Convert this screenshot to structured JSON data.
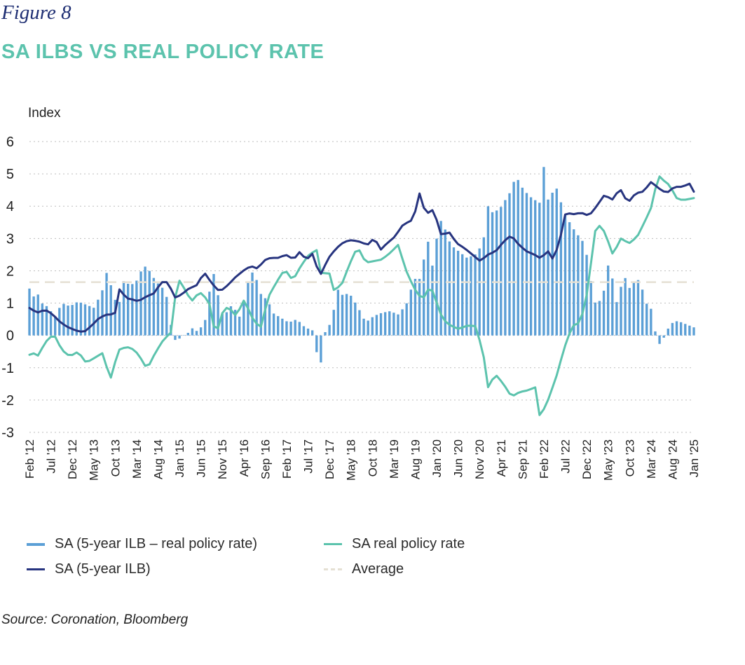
{
  "header": {
    "figure_label": "Figure 8",
    "title": "SA ILBS VS REAL POLICY RATE"
  },
  "source_note": "Source: Coronation, Bloomberg",
  "colors": {
    "spread_bars": "#5b9fd6",
    "ilb_line": "#27347f",
    "policy_line": "#5cc3ad",
    "average_line": "#e5e0d4",
    "axis_text": "#1f1f1f",
    "grid": "#bdbdbd"
  },
  "legend": {
    "spread": "SA (5-year ILB – real policy rate)",
    "policy": "SA real policy rate",
    "ilb": "SA (5-year ILB)",
    "average": "Average"
  },
  "chart_data": {
    "type": "bar+line",
    "title": "SA ILBS VS REAL POLICY RATE",
    "ylabel": "Index",
    "xlabel": "",
    "ylim": [
      -3,
      6
    ],
    "yticks": [
      -3,
      -2,
      -1,
      0,
      1,
      2,
      3,
      4,
      5,
      6
    ],
    "x_tick_labels": [
      "Feb '12",
      "Jul '12",
      "Dec '12",
      "May '13",
      "Oct '13",
      "Mar '14",
      "Aug '14",
      "Jan '15",
      "Jun '15",
      "Nov '15",
      "Apr '16",
      "Sep '16",
      "Feb '17",
      "Jul '17",
      "Dec '17",
      "May '18",
      "Oct '18",
      "Mar '19",
      "Aug '19",
      "Jan '20",
      "Jun '20",
      "Nov '20",
      "Apr '21",
      "Sep '21",
      "Feb '22",
      "Jul '22",
      "Dec '22",
      "May '23",
      "Oct '23",
      "Mar '24",
      "Aug '24",
      "Jan '25"
    ],
    "x_start": "Feb 2012",
    "x_end": "Jan 2025",
    "frequency": "monthly",
    "average": 1.65,
    "series": [
      {
        "name": "SA (5-year ILB)",
        "kind": "line",
        "anchors": [
          [
            0,
            0.85
          ],
          [
            2,
            0.7
          ],
          [
            4,
            0.8
          ],
          [
            6,
            0.65
          ],
          [
            8,
            0.4
          ],
          [
            10,
            0.25
          ],
          [
            12,
            0.15
          ],
          [
            14,
            0.1
          ],
          [
            16,
            0.3
          ],
          [
            18,
            0.55
          ],
          [
            20,
            0.65
          ],
          [
            22,
            0.65
          ],
          [
            23,
            1.45
          ],
          [
            25,
            1.15
          ],
          [
            27,
            1.1
          ],
          [
            28,
            1.05
          ],
          [
            30,
            1.2
          ],
          [
            32,
            1.3
          ],
          [
            34,
            1.65
          ],
          [
            36,
            1.65
          ],
          [
            37,
            1.15
          ],
          [
            39,
            1.25
          ],
          [
            41,
            1.45
          ],
          [
            43,
            1.55
          ],
          [
            45,
            1.95
          ],
          [
            47,
            1.6
          ],
          [
            49,
            1.35
          ],
          [
            51,
            1.55
          ],
          [
            53,
            1.8
          ],
          [
            55,
            2.0
          ],
          [
            57,
            2.15
          ],
          [
            59,
            2.05
          ],
          [
            60,
            2.3
          ],
          [
            62,
            2.4
          ],
          [
            64,
            2.4
          ],
          [
            66,
            2.5
          ],
          [
            68,
            2.35
          ],
          [
            70,
            2.65
          ],
          [
            71,
            2.3
          ],
          [
            73,
            2.55
          ],
          [
            74,
            2.1
          ],
          [
            75,
            1.9
          ],
          [
            77,
            2.4
          ],
          [
            79,
            2.7
          ],
          [
            81,
            2.9
          ],
          [
            83,
            2.95
          ],
          [
            85,
            2.9
          ],
          [
            87,
            2.8
          ],
          [
            89,
            3.05
          ],
          [
            90,
            2.6
          ],
          [
            92,
            2.85
          ],
          [
            94,
            3.05
          ],
          [
            96,
            3.4
          ],
          [
            98,
            3.55
          ],
          [
            99,
            3.55
          ],
          [
            100,
            4.55
          ],
          [
            102,
            3.75
          ],
          [
            104,
            3.9
          ],
          [
            106,
            3.1
          ],
          [
            108,
            3.2
          ],
          [
            110,
            2.85
          ],
          [
            112,
            2.7
          ],
          [
            114,
            2.5
          ],
          [
            116,
            2.3
          ],
          [
            118,
            2.5
          ],
          [
            120,
            2.6
          ],
          [
            122,
            2.9
          ],
          [
            124,
            3.1
          ],
          [
            126,
            2.8
          ],
          [
            128,
            2.6
          ],
          [
            130,
            2.5
          ],
          [
            132,
            2.35
          ],
          [
            133,
            2.7
          ],
          [
            135,
            2.3
          ],
          [
            136,
            2.8
          ],
          [
            137,
            3.2
          ],
          [
            138,
            3.8
          ],
          [
            140,
            3.75
          ],
          [
            142,
            3.8
          ],
          [
            144,
            3.7
          ],
          [
            146,
            4.0
          ],
          [
            148,
            4.35
          ],
          [
            150,
            4.2
          ],
          [
            152,
            4.55
          ],
          [
            154,
            4.1
          ],
          [
            156,
            4.4
          ],
          [
            158,
            4.45
          ],
          [
            160,
            4.75
          ],
          [
            162,
            4.55
          ],
          [
            164,
            4.4
          ],
          [
            166,
            4.6
          ],
          [
            168,
            4.6
          ],
          [
            170,
            4.7
          ],
          [
            171,
            4.45
          ]
        ]
      },
      {
        "name": "SA real policy rate",
        "kind": "line",
        "anchors": [
          [
            0,
            -0.6
          ],
          [
            1,
            -0.55
          ],
          [
            2,
            -0.65
          ],
          [
            4,
            -0.2
          ],
          [
            6,
            0.05
          ],
          [
            8,
            -0.45
          ],
          [
            10,
            -0.65
          ],
          [
            12,
            -0.5
          ],
          [
            14,
            -0.85
          ],
          [
            16,
            -0.7
          ],
          [
            18,
            -0.55
          ],
          [
            20,
            -1.35
          ],
          [
            22,
            -0.45
          ],
          [
            24,
            -0.35
          ],
          [
            26,
            -0.45
          ],
          [
            28,
            -0.8
          ],
          [
            29,
            -1.05
          ],
          [
            31,
            -0.55
          ],
          [
            33,
            -0.15
          ],
          [
            35,
            0.1
          ],
          [
            36,
            1.2
          ],
          [
            37,
            1.7
          ],
          [
            38,
            1.5
          ],
          [
            40,
            1.05
          ],
          [
            42,
            1.35
          ],
          [
            44,
            1.1
          ],
          [
            45,
            0.8
          ],
          [
            46,
            -0.25
          ],
          [
            47,
            0.6
          ],
          [
            49,
            0.9
          ],
          [
            51,
            0.6
          ],
          [
            53,
            1.1
          ],
          [
            55,
            0.55
          ],
          [
            57,
            0.2
          ],
          [
            59,
            1.2
          ],
          [
            61,
            1.65
          ],
          [
            63,
            2.05
          ],
          [
            65,
            1.7
          ],
          [
            67,
            2.15
          ],
          [
            69,
            2.5
          ],
          [
            71,
            2.65
          ],
          [
            72,
            1.9
          ],
          [
            74,
            1.95
          ],
          [
            75,
            1.4
          ],
          [
            77,
            1.55
          ],
          [
            79,
            2.2
          ],
          [
            81,
            2.75
          ],
          [
            83,
            2.25
          ],
          [
            85,
            2.3
          ],
          [
            87,
            2.35
          ],
          [
            89,
            2.55
          ],
          [
            91,
            2.8
          ],
          [
            93,
            2.0
          ],
          [
            95,
            1.45
          ],
          [
            97,
            1.1
          ],
          [
            99,
            1.55
          ],
          [
            100,
            1.2
          ],
          [
            102,
            0.5
          ],
          [
            104,
            0.3
          ],
          [
            106,
            0.2
          ],
          [
            108,
            0.3
          ],
          [
            110,
            0.3
          ],
          [
            112,
            -0.5
          ],
          [
            113,
            -1.65
          ],
          [
            115,
            -1.2
          ],
          [
            117,
            -1.5
          ],
          [
            119,
            -1.9
          ],
          [
            121,
            -1.75
          ],
          [
            123,
            -1.7
          ],
          [
            125,
            -1.6
          ],
          [
            126,
            -2.55
          ],
          [
            128,
            -2.0
          ],
          [
            130,
            -1.3
          ],
          [
            132,
            -0.4
          ],
          [
            134,
            0.3
          ],
          [
            136,
            0.4
          ],
          [
            138,
            1.5
          ],
          [
            139,
            2.7
          ],
          [
            140,
            3.5
          ],
          [
            142,
            3.2
          ],
          [
            144,
            2.5
          ],
          [
            146,
            3.0
          ],
          [
            148,
            2.85
          ],
          [
            150,
            3.05
          ],
          [
            152,
            3.55
          ],
          [
            154,
            4.1
          ],
          [
            155,
            5.0
          ],
          [
            156,
            4.85
          ],
          [
            158,
            4.65
          ],
          [
            160,
            4.2
          ],
          [
            162,
            4.2
          ],
          [
            164,
            4.25
          ]
        ]
      },
      {
        "name": "SA (5-year ILB – real policy rate)",
        "kind": "bar",
        "anchors": [
          [
            0,
            1.45
          ],
          [
            1,
            1.2
          ],
          [
            2,
            1.3
          ],
          [
            3,
            1.0
          ],
          [
            5,
            0.85
          ],
          [
            6,
            0.5
          ],
          [
            7,
            0.75
          ],
          [
            8,
            1.0
          ],
          [
            10,
            0.9
          ],
          [
            12,
            1.05
          ],
          [
            14,
            0.95
          ],
          [
            16,
            0.85
          ],
          [
            18,
            1.4
          ],
          [
            19,
            1.95
          ],
          [
            20,
            1.6
          ],
          [
            21,
            1.15
          ],
          [
            22,
            0.85
          ],
          [
            23,
            1.7
          ],
          [
            25,
            1.55
          ],
          [
            27,
            1.75
          ],
          [
            28,
            2.2
          ],
          [
            30,
            1.95
          ],
          [
            31,
            1.7
          ],
          [
            33,
            1.45
          ],
          [
            34,
            1.15
          ],
          [
            35,
            0.25
          ],
          [
            36,
            -0.15
          ],
          [
            37,
            -0.1
          ],
          [
            38,
            0.0
          ],
          [
            39,
            0.05
          ],
          [
            40,
            0.25
          ],
          [
            41,
            0.1
          ],
          [
            42,
            0.25
          ],
          [
            43,
            0.25
          ],
          [
            44,
            0.85
          ],
          [
            45,
            2.0
          ],
          [
            46,
            1.8
          ],
          [
            47,
            0.8
          ],
          [
            48,
            0.6
          ],
          [
            50,
            0.95
          ],
          [
            52,
            0.55
          ],
          [
            54,
            1.65
          ],
          [
            55,
            1.95
          ],
          [
            56,
            1.75
          ],
          [
            57,
            1.3
          ],
          [
            59,
            1.05
          ],
          [
            60,
            0.7
          ],
          [
            62,
            0.55
          ],
          [
            64,
            0.4
          ],
          [
            66,
            0.5
          ],
          [
            68,
            0.25
          ],
          [
            70,
            0.15
          ],
          [
            71,
            -0.6
          ],
          [
            72,
            -0.85
          ],
          [
            73,
            0.1
          ],
          [
            74,
            0.3
          ],
          [
            75,
            0.7
          ],
          [
            76,
            1.45
          ],
          [
            77,
            1.25
          ],
          [
            79,
            1.3
          ],
          [
            81,
            0.9
          ],
          [
            83,
            0.4
          ],
          [
            85,
            0.6
          ],
          [
            87,
            0.7
          ],
          [
            89,
            0.75
          ],
          [
            91,
            0.65
          ],
          [
            93,
            0.95
          ],
          [
            95,
            1.75
          ],
          [
            97,
            1.75
          ],
          [
            98,
            3.5
          ],
          [
            99,
            2.0
          ],
          [
            100,
            2.35
          ],
          [
            101,
            3.6
          ],
          [
            102,
            3.5
          ],
          [
            104,
            2.8
          ],
          [
            106,
            2.6
          ],
          [
            108,
            2.4
          ],
          [
            110,
            2.5
          ],
          [
            112,
            2.85
          ],
          [
            113,
            4.05
          ],
          [
            114,
            3.8
          ],
          [
            116,
            3.9
          ],
          [
            117,
            4.1
          ],
          [
            119,
            4.5
          ],
          [
            120,
            4.95
          ],
          [
            122,
            4.5
          ],
          [
            124,
            4.25
          ],
          [
            126,
            4.1
          ],
          [
            127,
            5.25
          ],
          [
            128,
            4.2
          ],
          [
            130,
            4.6
          ],
          [
            132,
            3.8
          ],
          [
            134,
            3.35
          ],
          [
            136,
            3.0
          ],
          [
            137,
            2.85
          ],
          [
            138,
            2.2
          ],
          [
            139,
            1.35
          ],
          [
            140,
            0.85
          ],
          [
            142,
            1.45
          ],
          [
            143,
            2.3
          ],
          [
            144,
            1.7
          ],
          [
            145,
            1.0
          ],
          [
            146,
            1.5
          ],
          [
            147,
            1.8
          ],
          [
            148,
            1.45
          ],
          [
            150,
            1.75
          ],
          [
            151,
            1.6
          ],
          [
            152,
            1.0
          ],
          [
            153,
            0.95
          ],
          [
            154,
            0.65
          ],
          [
            155,
            -0.45
          ],
          [
            156,
            -0.1
          ],
          [
            157,
            -0.05
          ],
          [
            158,
            0.35
          ],
          [
            160,
            0.45
          ],
          [
            162,
            0.35
          ],
          [
            164,
            0.25
          ]
        ]
      },
      {
        "name": "Average",
        "kind": "line",
        "constant": 1.65
      }
    ]
  }
}
